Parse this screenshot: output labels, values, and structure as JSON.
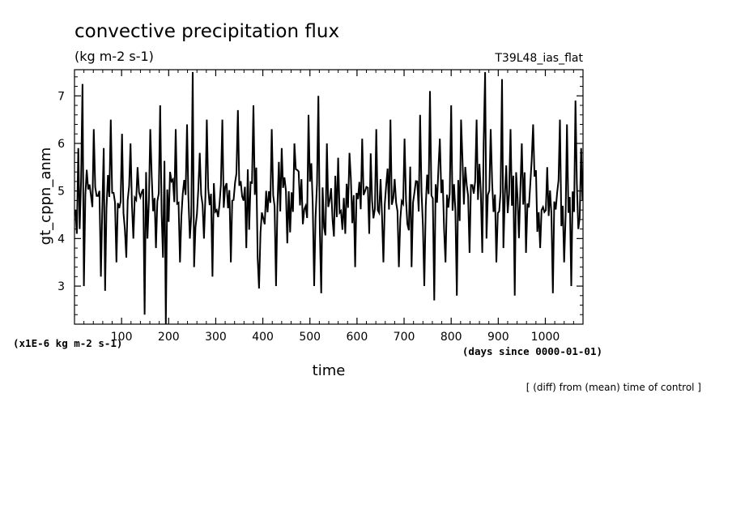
{
  "chart_data": {
    "type": "line",
    "title": "convective precipitation flux",
    "units": "(kg m-2 s-1)",
    "run_label": "T39L48_ias_flat",
    "ylabel": "gt_cppn_anm",
    "xlabel": "time",
    "x_units": "(days since 0000-01-01)",
    "y_scale_note": "(x1E-6 kg m-2 s-1)",
    "footnote": "[ (diff) from (mean) time of control ]",
    "xlim": [
      0,
      1080
    ],
    "ylim": [
      2.2,
      7.55
    ],
    "x_ticks": [
      100,
      200,
      300,
      400,
      500,
      600,
      700,
      800,
      900,
      1000
    ],
    "x_tick_labels": [
      "100",
      "200",
      "300",
      "400",
      "500",
      "600",
      "700",
      "800",
      "900",
      "1000"
    ],
    "y_ticks": [
      3,
      4,
      5,
      6,
      7
    ],
    "y_tick_labels": [
      "3",
      "4",
      "5",
      "6",
      "7"
    ],
    "grid": false,
    "series": [
      {
        "name": "gt_cppn_anm",
        "x_start": 2,
        "x_step": 3,
        "anchor_values": [
          [
            2,
            4.6
          ],
          [
            5,
            4.1
          ],
          [
            8,
            5.9
          ],
          [
            11,
            4.2
          ],
          [
            14,
            5.2
          ],
          [
            17,
            7.25
          ],
          [
            20,
            3.0
          ],
          [
            40,
            6.3
          ],
          [
            55,
            3.2
          ],
          [
            62,
            5.9
          ],
          [
            65,
            2.9
          ],
          [
            78,
            6.5
          ],
          [
            90,
            3.5
          ],
          [
            102,
            6.2
          ],
          [
            110,
            3.6
          ],
          [
            118,
            6.0
          ],
          [
            125,
            4.0
          ],
          [
            135,
            5.5
          ],
          [
            148,
            2.4
          ],
          [
            155,
            4.0
          ],
          [
            162,
            6.3
          ],
          [
            172,
            3.8
          ],
          [
            182,
            6.8
          ],
          [
            188,
            3.6
          ],
          [
            193,
            2.2
          ],
          [
            203,
            5.4
          ],
          [
            215,
            6.3
          ],
          [
            225,
            3.5
          ],
          [
            238,
            6.4
          ],
          [
            245,
            4.0
          ],
          [
            250,
            7.5
          ],
          [
            253,
            3.4
          ],
          [
            265,
            5.8
          ],
          [
            275,
            4.0
          ],
          [
            282,
            6.5
          ],
          [
            292,
            3.2
          ],
          [
            303,
            4.6
          ],
          [
            315,
            6.5
          ],
          [
            332,
            3.5
          ],
          [
            348,
            6.7
          ],
          [
            365,
            3.8
          ],
          [
            380,
            6.8
          ],
          [
            388,
            3.6
          ],
          [
            393,
            2.95
          ],
          [
            405,
            4.3
          ],
          [
            418,
            6.3
          ],
          [
            428,
            3.0
          ],
          [
            440,
            5.9
          ],
          [
            452,
            3.9
          ],
          [
            468,
            6.0
          ],
          [
            485,
            4.3
          ],
          [
            498,
            6.6
          ],
          [
            508,
            3.0
          ],
          [
            518,
            7.0
          ],
          [
            523,
            2.85
          ],
          [
            535,
            6.0
          ],
          [
            548,
            4.4
          ],
          [
            560,
            5.7
          ],
          [
            574,
            4.1
          ],
          [
            585,
            5.8
          ],
          [
            596,
            3.4
          ],
          [
            612,
            6.1
          ],
          [
            625,
            4.1
          ],
          [
            640,
            6.3
          ],
          [
            655,
            3.5
          ],
          [
            670,
            6.5
          ],
          [
            688,
            3.4
          ],
          [
            700,
            6.1
          ],
          [
            715,
            3.4
          ],
          [
            729,
            5.2
          ],
          [
            735,
            6.6
          ],
          [
            742,
            3.0
          ],
          [
            755,
            7.1
          ],
          [
            765,
            2.7
          ],
          [
            775,
            6.1
          ],
          [
            788,
            3.5
          ],
          [
            800,
            6.8
          ],
          [
            813,
            2.8
          ],
          [
            822,
            6.5
          ],
          [
            838,
            3.7
          ],
          [
            853,
            6.5
          ],
          [
            866,
            3.7
          ],
          [
            868,
            6.0
          ],
          [
            872,
            7.5
          ],
          [
            876,
            4.0
          ],
          [
            885,
            6.3
          ],
          [
            895,
            3.5
          ],
          [
            908,
            7.35
          ],
          [
            912,
            3.8
          ],
          [
            925,
            6.3
          ],
          [
            935,
            2.8
          ],
          [
            950,
            6.0
          ],
          [
            960,
            3.7
          ],
          [
            975,
            6.4
          ],
          [
            990,
            3.8
          ],
          [
            1005,
            5.5
          ],
          [
            1015,
            2.85
          ],
          [
            1030,
            6.5
          ],
          [
            1040,
            3.5
          ],
          [
            1045,
            6.4
          ],
          [
            1055,
            3.0
          ],
          [
            1063,
            6.9
          ],
          [
            1069,
            4.2
          ],
          [
            1075,
            5.9
          ],
          [
            1078,
            4.8
          ]
        ]
      }
    ]
  }
}
